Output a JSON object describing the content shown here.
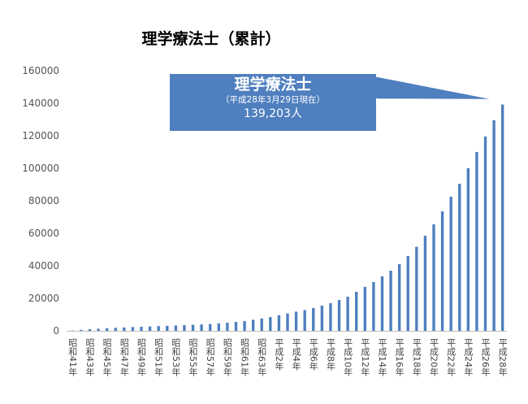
{
  "chart_data": {
    "type": "bar",
    "title": "理学療法士（累計）",
    "xlabel": "",
    "ylabel": "",
    "ylim": [
      0,
      160000
    ],
    "yticks": [
      0,
      20000,
      40000,
      60000,
      80000,
      100000,
      120000,
      140000,
      160000
    ],
    "grid": false,
    "bar_color": "#4f7fbf",
    "categories": [
      "昭和41年",
      "昭和42年",
      "昭和43年",
      "昭和44年",
      "昭和45年",
      "昭和46年",
      "昭和47年",
      "昭和48年",
      "昭和49年",
      "昭和50年",
      "昭和51年",
      "昭和52年",
      "昭和53年",
      "昭和54年",
      "昭和55年",
      "昭和56年",
      "昭和57年",
      "昭和58年",
      "昭和59年",
      "昭和60年",
      "昭和61年",
      "昭和62年",
      "昭和63年",
      "平成元年",
      "平成2年",
      "平成3年",
      "平成4年",
      "平成5年",
      "平成6年",
      "平成7年",
      "平成8年",
      "平成9年",
      "平成10年",
      "平成11年",
      "平成12年",
      "平成13年",
      "平成14年",
      "平成15年",
      "平成16年",
      "平成17年",
      "平成18年",
      "平成19年",
      "平成20年",
      "平成21年",
      "平成22年",
      "平成23年",
      "平成24年",
      "平成25年",
      "平成26年",
      "平成27年",
      "平成28年"
    ],
    "tick_labels": [
      "昭和41年",
      "",
      "昭和43年",
      "",
      "昭和45年",
      "",
      "昭和47年",
      "",
      "昭和49年",
      "",
      "昭和51年",
      "",
      "昭和53年",
      "",
      "昭和55年",
      "",
      "昭和57年",
      "",
      "昭和59年",
      "",
      "昭和61年",
      "",
      "昭和63年",
      "",
      "平成2年",
      "",
      "平成4年",
      "",
      "平成6年",
      "",
      "平成8年",
      "",
      "平成10年",
      "",
      "平成12年",
      "",
      "平成14年",
      "",
      "平成16年",
      "",
      "平成18年",
      "",
      "平成20年",
      "",
      "平成22年",
      "",
      "平成24年",
      "",
      "平成26年",
      "",
      "平成28年"
    ],
    "values": [
      183,
      600,
      1000,
      1300,
      1600,
      1900,
      2100,
      2300,
      2500,
      2700,
      2900,
      3100,
      3300,
      3500,
      3700,
      3900,
      4200,
      4600,
      5000,
      5500,
      6000,
      6800,
      7600,
      8500,
      9600,
      10700,
      11800,
      12800,
      14000,
      15500,
      17000,
      19000,
      21000,
      24000,
      27000,
      30000,
      33500,
      37000,
      41000,
      46000,
      51700,
      58500,
      65500,
      73500,
      82500,
      90500,
      100000,
      110000,
      119500,
      129500,
      139203
    ],
    "callout": {
      "title": "理学療法士",
      "subtitle": "（平成28年3月29日現在）",
      "value": "139,203人",
      "fill": "#4f7fbf"
    }
  }
}
